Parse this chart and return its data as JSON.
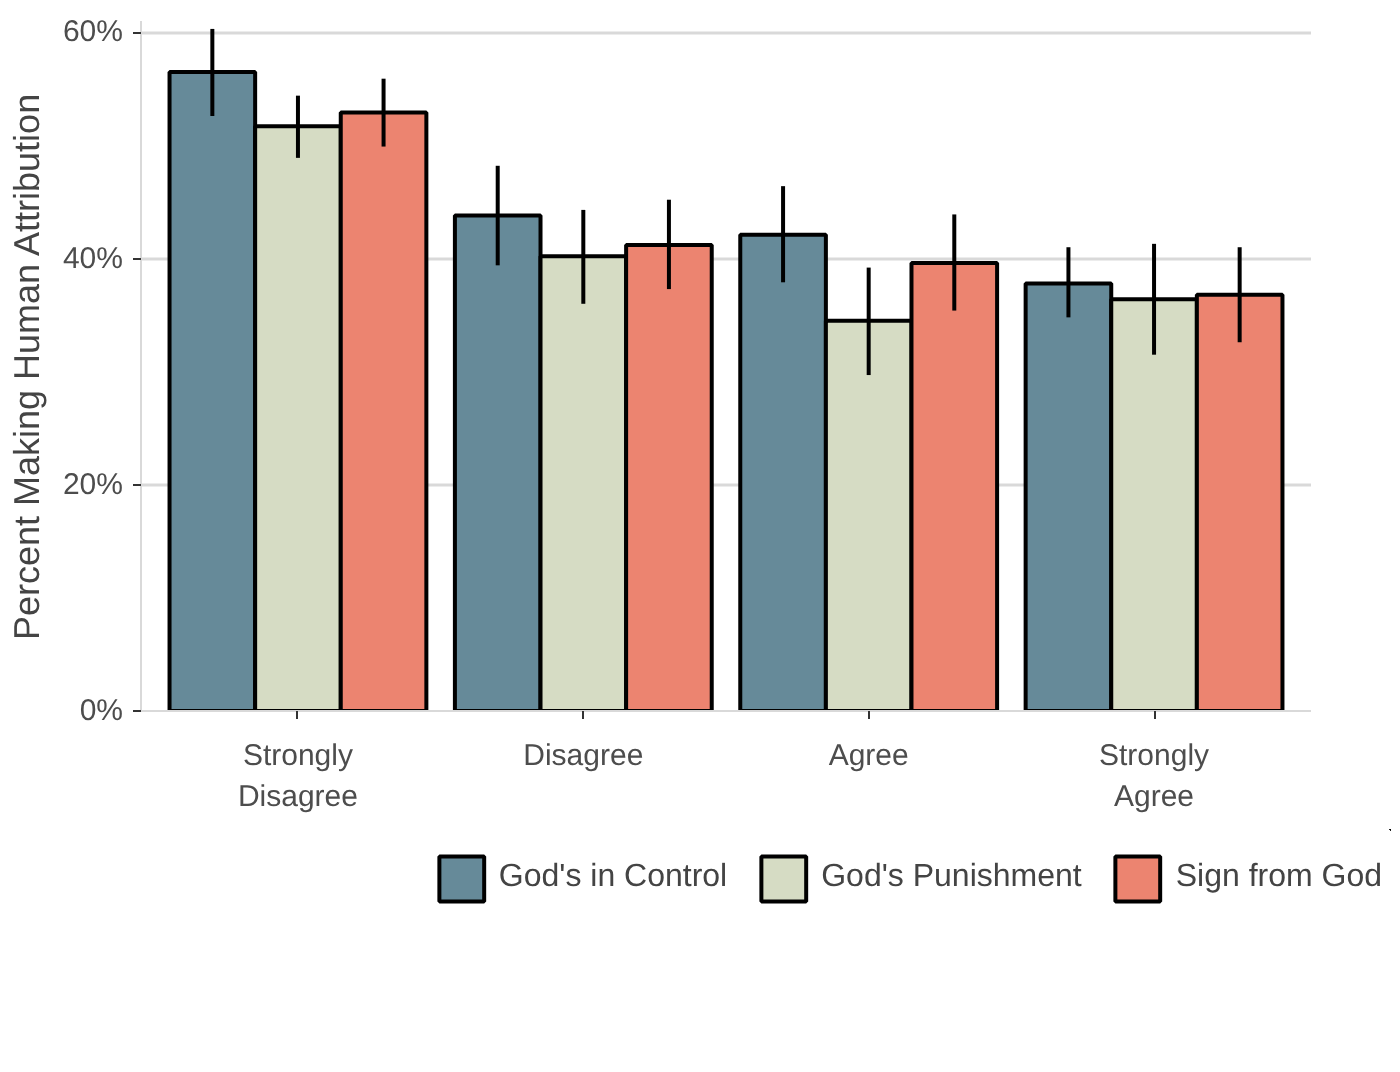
{
  "chart_data": {
    "type": "bar",
    "ylabel": "Percent Making Human Attribution",
    "categories": [
      "Strongly Disagree",
      "Disagree",
      "Agree",
      "Strongly Agree"
    ],
    "series": [
      {
        "name": "God's in Control",
        "color": "#668a99",
        "values": [
          56.5,
          43.8,
          42.1,
          37.8
        ],
        "errors": [
          [
            52.6,
            60.3
          ],
          [
            39.4,
            48.2
          ],
          [
            37.9,
            46.4
          ],
          [
            34.8,
            41.0
          ]
        ]
      },
      {
        "name": "God's Punishment",
        "color": "#d6dcc4",
        "values": [
          51.7,
          40.2,
          34.5,
          36.4
        ],
        "errors": [
          [
            48.9,
            54.4
          ],
          [
            36.0,
            44.3
          ],
          [
            29.7,
            39.2
          ],
          [
            31.5,
            41.3
          ]
        ]
      },
      {
        "name": "Sign from God",
        "color": "#ec8470",
        "values": [
          52.9,
          41.2,
          39.6,
          36.8
        ],
        "errors": [
          [
            49.9,
            55.9
          ],
          [
            37.3,
            45.2
          ],
          [
            35.4,
            43.9
          ],
          [
            32.6,
            41.0
          ]
        ]
      }
    ],
    "ylim": [
      0,
      61
    ],
    "yticks": [
      {
        "value": 0,
        "label": "0%"
      },
      {
        "value": 20,
        "label": "20%"
      },
      {
        "value": 40,
        "label": "40%"
      },
      {
        "value": 60,
        "label": "60%"
      }
    ],
    "grid": "y",
    "legend": "bottom"
  }
}
